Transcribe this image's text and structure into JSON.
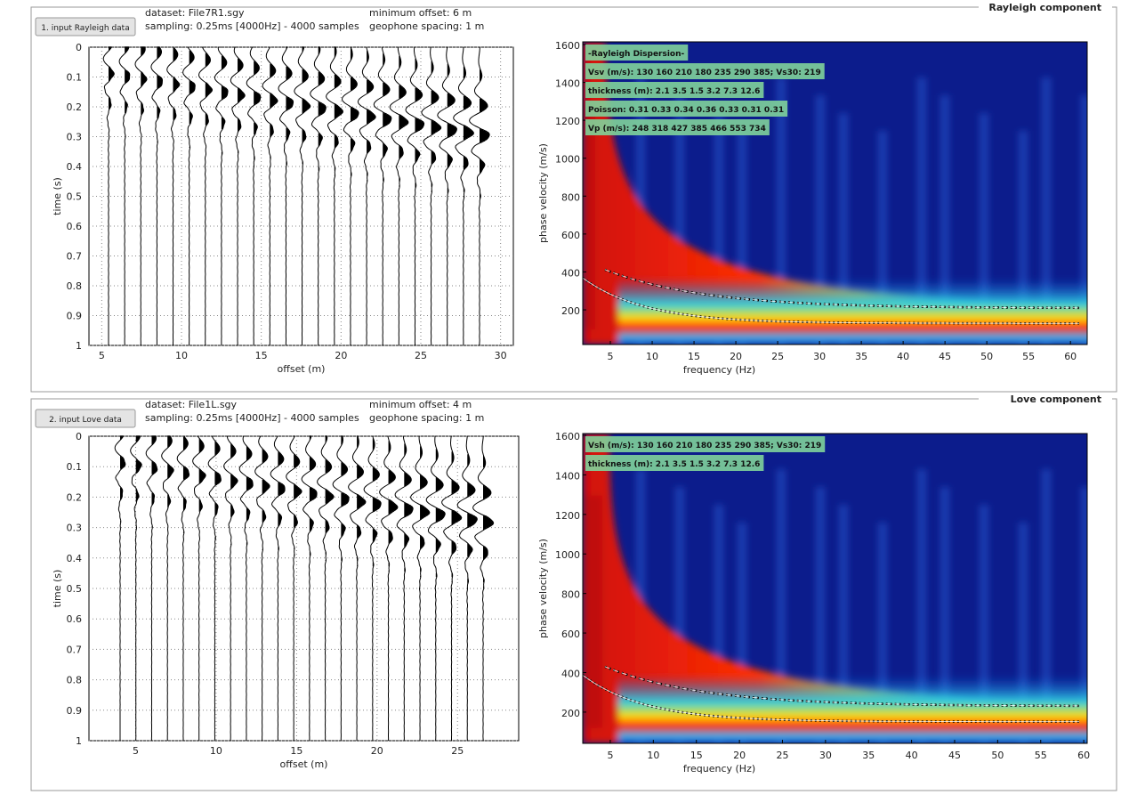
{
  "panels": [
    {
      "title": "Rayleigh component",
      "button": "1. input Rayleigh data",
      "dataset": "dataset: File7R1.sgy",
      "sampling": "sampling: 0.25ms [4000Hz] - 4000 samples",
      "min_offset": "minimum offset: 6 m",
      "spacing": "geophone spacing: 1 m",
      "seismogram": {
        "xlabel": "offset (m)",
        "ylabel": "time (s)",
        "xlim": [
          4.2,
          30.8
        ],
        "ylim": [
          0,
          1
        ],
        "xticks": [
          5,
          10,
          15,
          20,
          25,
          30
        ],
        "yticks": [
          0,
          0.1,
          0.2,
          0.3,
          0.4,
          0.5,
          0.6,
          0.7,
          0.8,
          0.9,
          1
        ]
      },
      "dispersion": {
        "xlabel": "frequency (Hz)",
        "ylabel": "phase velocity (m/s)",
        "xlim": [
          1.7,
          62
        ],
        "ylim": [
          17,
          1614
        ],
        "xticks": [
          5,
          10,
          15,
          20,
          25,
          30,
          35,
          40,
          45,
          50,
          55,
          60
        ],
        "yticks": [
          200,
          400,
          600,
          800,
          1000,
          1200,
          1400,
          1600
        ],
        "legend": [
          "-Rayleigh Dispersion-",
          "Vsv (m/s): 130  160  210  180  235  290  385; Vs30: 219",
          "thickness (m): 2.1   3.5   1.5   3.2   7.3   12.6",
          "Poisson: 0.31  0.33  0.34  0.36  0.33  0.31  0.31",
          "Vp (m/s): 248  318  427  385  466  553  734"
        ]
      }
    },
    {
      "title": "Love component",
      "button": "2. input Love data",
      "dataset": "dataset: File1L.sgy",
      "sampling": "sampling: 0.25ms [4000Hz] - 4000 samples",
      "min_offset": "minimum offset: 4 m",
      "spacing": "geophone spacing: 1 m",
      "seismogram": {
        "xlabel": "offset (m)",
        "ylabel": "time (s)",
        "xlim": [
          2.1,
          28.8
        ],
        "ylim": [
          0,
          1
        ],
        "xticks": [
          5,
          10,
          15,
          20,
          25
        ],
        "yticks": [
          0,
          0.1,
          0.2,
          0.3,
          0.4,
          0.5,
          0.6,
          0.7,
          0.8,
          0.9,
          1
        ]
      },
      "dispersion": {
        "xlabel": "frequency (Hz)",
        "ylabel": "phase velocity (m/s)",
        "xlim": [
          1.8,
          60.4
        ],
        "ylim": [
          42,
          1609
        ],
        "xticks": [
          5,
          10,
          15,
          20,
          25,
          30,
          35,
          40,
          45,
          50,
          55,
          60
        ],
        "yticks": [
          200,
          400,
          600,
          800,
          1000,
          1200,
          1400,
          1600
        ],
        "legend": [
          "Vsh (m/s): 130  160  210  180  235  290  385; Vs30: 219",
          "thickness (m): 2.1   3.5   1.5   3.2   7.3   12.6"
        ]
      }
    }
  ]
}
